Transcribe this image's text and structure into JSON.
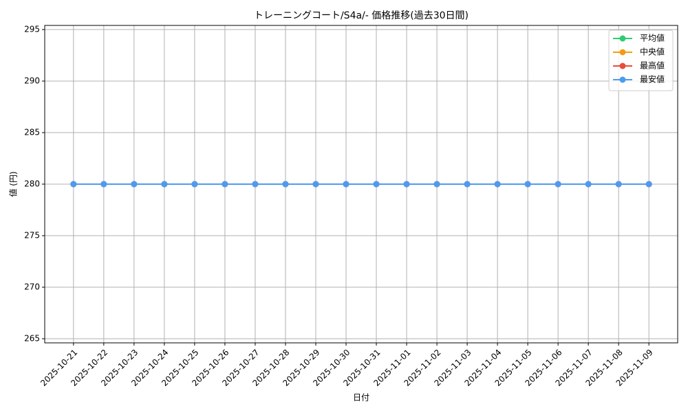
{
  "chart_data": {
    "type": "line",
    "title": "トレーニングコート/S4a/- 価格推移(過去30日間)",
    "x_label": "日付",
    "y_label": "値 (円)",
    "categories": [
      "2025-10-21",
      "2025-10-22",
      "2025-10-23",
      "2025-10-24",
      "2025-10-25",
      "2025-10-26",
      "2025-10-27",
      "2025-10-28",
      "2025-10-29",
      "2025-10-30",
      "2025-10-31",
      "2025-11-01",
      "2025-11-02",
      "2025-11-03",
      "2025-11-04",
      "2025-11-05",
      "2025-11-06",
      "2025-11-07",
      "2025-11-08",
      "2025-11-09"
    ],
    "series": [
      {
        "name": "平均値",
        "color": "#2ecc71",
        "values": [
          280,
          280,
          280,
          280,
          280,
          280,
          280,
          280,
          280,
          280,
          280,
          280,
          280,
          280,
          280,
          280,
          280,
          280,
          280,
          280
        ]
      },
      {
        "name": "中央値",
        "color": "#f39c12",
        "values": [
          280,
          280,
          280,
          280,
          280,
          280,
          280,
          280,
          280,
          280,
          280,
          280,
          280,
          280,
          280,
          280,
          280,
          280,
          280,
          280
        ]
      },
      {
        "name": "最高値",
        "color": "#e74c3c",
        "values": [
          280,
          280,
          280,
          280,
          280,
          280,
          280,
          280,
          280,
          280,
          280,
          280,
          280,
          280,
          280,
          280,
          280,
          280,
          280,
          280
        ]
      },
      {
        "name": "最安値",
        "color": "#4e9af1",
        "values": [
          280,
          280,
          280,
          280,
          280,
          280,
          280,
          280,
          280,
          280,
          280,
          280,
          280,
          280,
          280,
          280,
          280,
          280,
          280,
          280
        ]
      }
    ],
    "ylim": [
      264.6,
      295.4
    ],
    "yticks": [
      265,
      270,
      275,
      280,
      285,
      290,
      295
    ],
    "grid": true,
    "legend": "upper-right"
  }
}
